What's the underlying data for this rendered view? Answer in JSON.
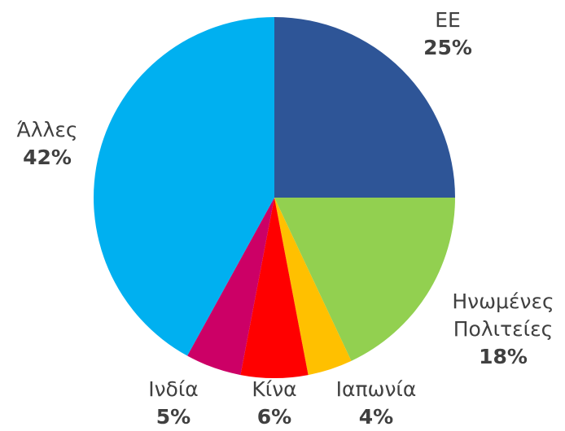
{
  "chart_data": {
    "type": "pie",
    "categories": [
      "ΕΕ",
      "Ηνωμένες Πολιτείες",
      "Ιαπωνία",
      "Κίνα",
      "Ινδία",
      "Άλλες"
    ],
    "values": [
      25,
      18,
      4,
      6,
      5,
      42
    ],
    "value_labels": [
      "25%",
      "18%",
      "4%",
      "6%",
      "5%",
      "42%"
    ],
    "colors": [
      "#2e5597",
      "#92d050",
      "#ffc000",
      "#ff0000",
      "#cc0066",
      "#00b0f0"
    ]
  }
}
